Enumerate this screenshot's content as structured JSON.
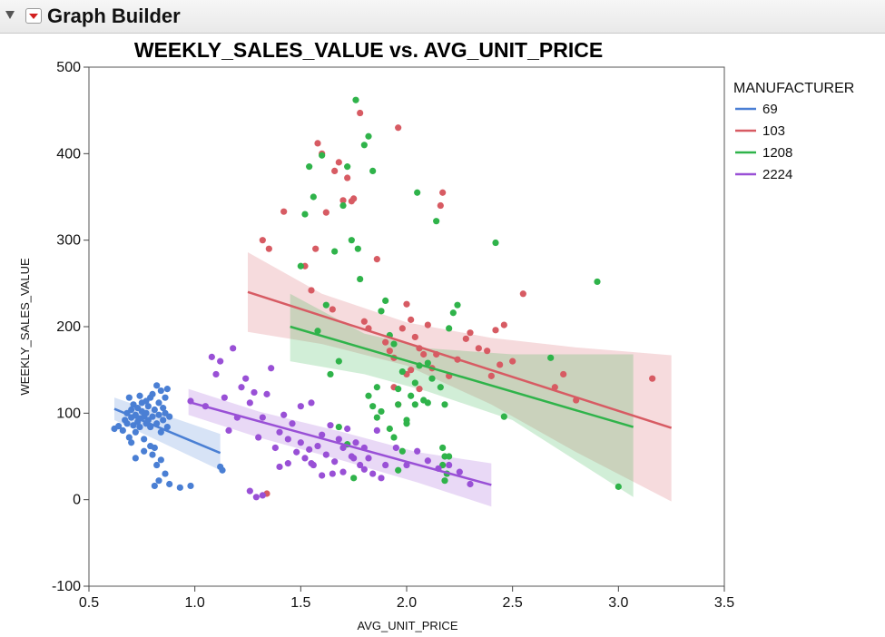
{
  "app": {
    "title": "Graph Builder"
  },
  "chart_data": {
    "type": "scatter",
    "title": "WEEKLY_SALES_VALUE vs. AVG_UNIT_PRICE",
    "xlabel": "AVG_UNIT_PRICE",
    "ylabel": "WEEKLY_SALES_VALUE",
    "xlim": [
      0.5,
      3.5
    ],
    "ylim": [
      -100,
      500
    ],
    "xticks": [
      "0.5",
      "1.0",
      "1.5",
      "2.0",
      "2.5",
      "3.0",
      "3.5"
    ],
    "yticks": [
      "-100",
      "0",
      "100",
      "200",
      "300",
      "400",
      "500"
    ],
    "legend": {
      "title": "MANUFACTURER",
      "placement": "right"
    },
    "series": [
      {
        "name": "69",
        "color": "#4a7fd4",
        "fit": {
          "x": [
            0.62,
            1.12
          ],
          "y": [
            105,
            54
          ]
        },
        "band": {
          "x": [
            0.62,
            1.12
          ],
          "upper": [
            118,
            76
          ],
          "lower": [
            92,
            34
          ]
        },
        "points": [
          [
            0.62,
            82
          ],
          [
            0.64,
            85
          ],
          [
            0.66,
            80
          ],
          [
            0.67,
            92
          ],
          [
            0.68,
            100
          ],
          [
            0.68,
            88
          ],
          [
            0.69,
            118
          ],
          [
            0.69,
            72
          ],
          [
            0.7,
            95
          ],
          [
            0.7,
            104
          ],
          [
            0.71,
            86
          ],
          [
            0.71,
            110
          ],
          [
            0.72,
            98
          ],
          [
            0.72,
            78
          ],
          [
            0.73,
            90
          ],
          [
            0.73,
            106
          ],
          [
            0.74,
            94
          ],
          [
            0.74,
            84
          ],
          [
            0.75,
            102
          ],
          [
            0.75,
            112
          ],
          [
            0.76,
            96
          ],
          [
            0.76,
            70
          ],
          [
            0.77,
            88
          ],
          [
            0.77,
            100
          ],
          [
            0.78,
            108
          ],
          [
            0.78,
            92
          ],
          [
            0.79,
            84
          ],
          [
            0.79,
            118
          ],
          [
            0.8,
            96
          ],
          [
            0.8,
            122
          ],
          [
            0.81,
            104
          ],
          [
            0.81,
            60
          ],
          [
            0.82,
            88
          ],
          [
            0.82,
            132
          ],
          [
            0.83,
            112
          ],
          [
            0.83,
            98
          ],
          [
            0.84,
            126
          ],
          [
            0.84,
            78
          ],
          [
            0.85,
            106
          ],
          [
            0.85,
            92
          ],
          [
            0.86,
            100
          ],
          [
            0.86,
            118
          ],
          [
            0.87,
            84
          ],
          [
            0.87,
            128
          ],
          [
            0.88,
            96
          ],
          [
            0.8,
            52
          ],
          [
            0.82,
            40
          ],
          [
            0.84,
            46
          ],
          [
            0.86,
            30
          ],
          [
            0.83,
            22
          ],
          [
            0.88,
            18
          ],
          [
            0.81,
            16
          ],
          [
            0.93,
            14
          ],
          [
            0.98,
            16
          ],
          [
            1.12,
            38
          ],
          [
            1.13,
            34
          ],
          [
            0.72,
            48
          ],
          [
            0.76,
            56
          ],
          [
            0.79,
            62
          ],
          [
            0.7,
            66
          ],
          [
            0.74,
            120
          ],
          [
            0.77,
            114
          ]
        ]
      },
      {
        "name": "103",
        "color": "#d75b63",
        "fit": {
          "x": [
            1.25,
            3.25
          ],
          "y": [
            240,
            83
          ]
        },
        "band": {
          "x": [
            1.25,
            1.6,
            2.0,
            2.4,
            2.8,
            3.25
          ],
          "upper": [
            286,
            238,
            205,
            187,
            176,
            167
          ],
          "lower": [
            194,
            180,
            155,
            110,
            55,
            -2
          ]
        },
        "points": [
          [
            1.32,
            300
          ],
          [
            1.35,
            290
          ],
          [
            1.42,
            333
          ],
          [
            1.52,
            270
          ],
          [
            1.55,
            242
          ],
          [
            1.57,
            290
          ],
          [
            1.58,
            412
          ],
          [
            1.6,
            400
          ],
          [
            1.62,
            332
          ],
          [
            1.65,
            220
          ],
          [
            1.66,
            380
          ],
          [
            1.68,
            390
          ],
          [
            1.7,
            346
          ],
          [
            1.72,
            372
          ],
          [
            1.74,
            345
          ],
          [
            1.75,
            348
          ],
          [
            1.78,
            447
          ],
          [
            1.8,
            206
          ],
          [
            1.82,
            198
          ],
          [
            1.86,
            278
          ],
          [
            1.9,
            182
          ],
          [
            1.92,
            172
          ],
          [
            1.94,
            164
          ],
          [
            1.96,
            430
          ],
          [
            1.98,
            198
          ],
          [
            2.0,
            226
          ],
          [
            2.02,
            208
          ],
          [
            2.04,
            188
          ],
          [
            2.06,
            175
          ],
          [
            2.08,
            168
          ],
          [
            2.1,
            202
          ],
          [
            2.12,
            152
          ],
          [
            2.14,
            168
          ],
          [
            2.16,
            340
          ],
          [
            2.17,
            355
          ],
          [
            2.2,
            143
          ],
          [
            2.24,
            162
          ],
          [
            2.28,
            186
          ],
          [
            2.3,
            193
          ],
          [
            2.34,
            175
          ],
          [
            2.38,
            172
          ],
          [
            2.4,
            143
          ],
          [
            2.42,
            196
          ],
          [
            2.44,
            156
          ],
          [
            2.46,
            202
          ],
          [
            2.5,
            160
          ],
          [
            2.55,
            238
          ],
          [
            2.7,
            130
          ],
          [
            2.74,
            145
          ],
          [
            2.8,
            115
          ],
          [
            3.16,
            140
          ],
          [
            1.94,
            130
          ],
          [
            2.0,
            145
          ],
          [
            2.06,
            128
          ],
          [
            1.96,
            110
          ],
          [
            2.02,
            150
          ],
          [
            1.34,
            7
          ]
        ]
      },
      {
        "name": "1208",
        "color": "#2fb34a",
        "fit": {
          "x": [
            1.45,
            3.07
          ],
          "y": [
            200,
            84
          ]
        },
        "band": {
          "x": [
            1.45,
            1.8,
            2.1,
            2.5,
            3.07
          ],
          "upper": [
            238,
            192,
            175,
            168,
            168
          ],
          "lower": [
            160,
            145,
            125,
            92,
            3
          ]
        },
        "points": [
          [
            1.5,
            270
          ],
          [
            1.52,
            330
          ],
          [
            1.54,
            385
          ],
          [
            1.56,
            350
          ],
          [
            1.58,
            195
          ],
          [
            1.6,
            398
          ],
          [
            1.62,
            225
          ],
          [
            1.64,
            145
          ],
          [
            1.66,
            287
          ],
          [
            1.68,
            160
          ],
          [
            1.7,
            340
          ],
          [
            1.72,
            385
          ],
          [
            1.74,
            300
          ],
          [
            1.76,
            462
          ],
          [
            1.77,
            290
          ],
          [
            1.78,
            255
          ],
          [
            1.8,
            410
          ],
          [
            1.82,
            420
          ],
          [
            1.84,
            380
          ],
          [
            1.86,
            130
          ],
          [
            1.88,
            218
          ],
          [
            1.9,
            230
          ],
          [
            1.92,
            190
          ],
          [
            1.94,
            180
          ],
          [
            1.96,
            110
          ],
          [
            1.98,
            148
          ],
          [
            2.0,
            88
          ],
          [
            2.02,
            120
          ],
          [
            2.04,
            135
          ],
          [
            2.05,
            355
          ],
          [
            2.06,
            155
          ],
          [
            2.08,
            115
          ],
          [
            2.1,
            112
          ],
          [
            2.12,
            140
          ],
          [
            2.14,
            322
          ],
          [
            2.16,
            130
          ],
          [
            2.18,
            110
          ],
          [
            2.2,
            198
          ],
          [
            2.22,
            216
          ],
          [
            2.24,
            225
          ],
          [
            2.42,
            297
          ],
          [
            2.46,
            96
          ],
          [
            2.68,
            164
          ],
          [
            2.9,
            252
          ],
          [
            3.0,
            15
          ],
          [
            1.68,
            84
          ],
          [
            1.72,
            64
          ],
          [
            1.75,
            25
          ],
          [
            1.82,
            120
          ],
          [
            1.84,
            108
          ],
          [
            1.86,
            95
          ],
          [
            1.88,
            102
          ],
          [
            1.92,
            82
          ],
          [
            1.94,
            72
          ],
          [
            1.96,
            128
          ],
          [
            1.98,
            56
          ],
          [
            2.0,
            92
          ],
          [
            2.04,
            110
          ],
          [
            1.96,
            34
          ],
          [
            2.17,
            60
          ],
          [
            2.18,
            50
          ],
          [
            2.19,
            30
          ],
          [
            2.17,
            40
          ],
          [
            2.18,
            22
          ],
          [
            2.1,
            158
          ],
          [
            2.2,
            50
          ]
        ]
      },
      {
        "name": "2224",
        "color": "#9950d6",
        "fit": {
          "x": [
            0.97,
            2.4
          ],
          "y": [
            113,
            17
          ]
        },
        "band": {
          "x": [
            0.97,
            1.3,
            1.7,
            2.05,
            2.4
          ],
          "upper": [
            128,
            102,
            78,
            55,
            42
          ],
          "lower": [
            98,
            72,
            45,
            20,
            -8
          ]
        },
        "points": [
          [
            0.98,
            114
          ],
          [
            1.05,
            108
          ],
          [
            1.08,
            165
          ],
          [
            1.1,
            145
          ],
          [
            1.12,
            160
          ],
          [
            1.14,
            118
          ],
          [
            1.16,
            80
          ],
          [
            1.18,
            175
          ],
          [
            1.2,
            95
          ],
          [
            1.22,
            130
          ],
          [
            1.24,
            140
          ],
          [
            1.26,
            112
          ],
          [
            1.28,
            124
          ],
          [
            1.3,
            72
          ],
          [
            1.32,
            95
          ],
          [
            1.34,
            122
          ],
          [
            1.36,
            152
          ],
          [
            1.38,
            60
          ],
          [
            1.4,
            78
          ],
          [
            1.42,
            98
          ],
          [
            1.44,
            70
          ],
          [
            1.46,
            88
          ],
          [
            1.48,
            55
          ],
          [
            1.5,
            66
          ],
          [
            1.52,
            48
          ],
          [
            1.54,
            58
          ],
          [
            1.56,
            40
          ],
          [
            1.58,
            62
          ],
          [
            1.6,
            75
          ],
          [
            1.62,
            52
          ],
          [
            1.64,
            86
          ],
          [
            1.66,
            44
          ],
          [
            1.68,
            70
          ],
          [
            1.7,
            60
          ],
          [
            1.72,
            82
          ],
          [
            1.74,
            50
          ],
          [
            1.76,
            66
          ],
          [
            1.78,
            40
          ],
          [
            1.8,
            60
          ],
          [
            1.82,
            48
          ],
          [
            1.84,
            30
          ],
          [
            1.86,
            80
          ],
          [
            1.88,
            25
          ],
          [
            1.9,
            40
          ],
          [
            1.95,
            60
          ],
          [
            2.0,
            40
          ],
          [
            2.05,
            56
          ],
          [
            2.1,
            45
          ],
          [
            2.15,
            36
          ],
          [
            2.2,
            40
          ],
          [
            2.25,
            32
          ],
          [
            2.3,
            18
          ],
          [
            1.29,
            3
          ],
          [
            1.32,
            5
          ],
          [
            1.4,
            38
          ],
          [
            1.44,
            42
          ],
          [
            1.6,
            28
          ],
          [
            1.55,
            42
          ],
          [
            1.65,
            30
          ],
          [
            1.7,
            32
          ],
          [
            1.75,
            48
          ],
          [
            1.8,
            35
          ],
          [
            1.5,
            108
          ],
          [
            1.55,
            112
          ],
          [
            1.26,
            10
          ]
        ]
      }
    ]
  }
}
